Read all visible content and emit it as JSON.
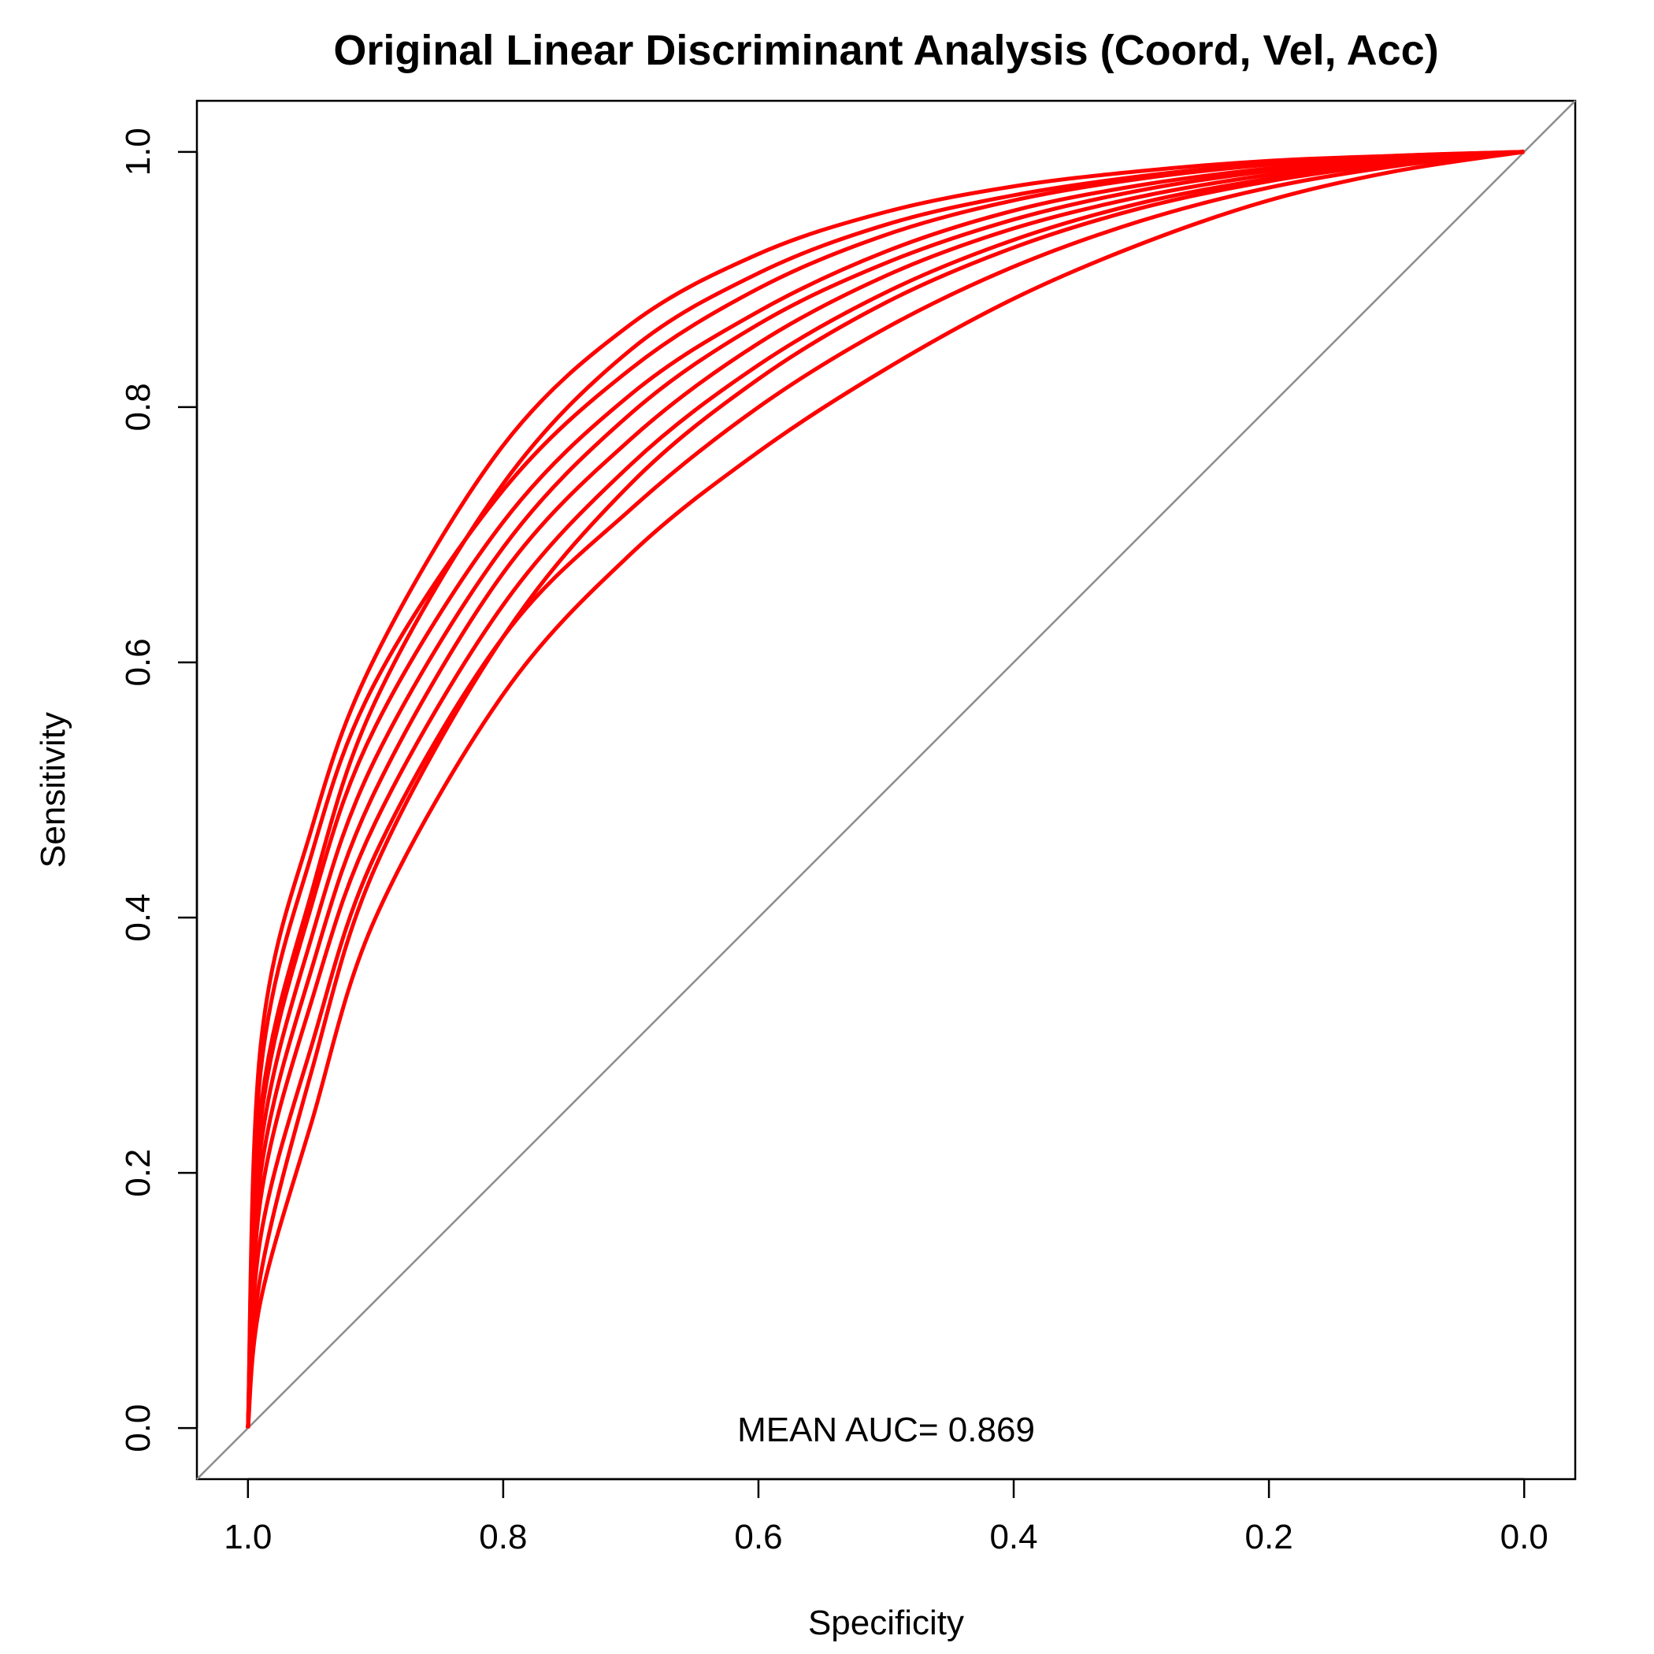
{
  "chart_data": {
    "type": "line",
    "title": "Original Linear Discriminant Analysis (Coord, Vel, Acc)",
    "xlabel": "Specificity",
    "ylabel": "Sensitivity",
    "x_reversed": true,
    "xlim": [
      1.04,
      -0.04
    ],
    "ylim": [
      -0.04,
      1.04
    ],
    "x_ticks": [
      "1.0",
      "0.8",
      "0.6",
      "0.4",
      "0.2",
      "0.0"
    ],
    "y_ticks": [
      "0.0",
      "0.2",
      "0.4",
      "0.6",
      "0.8",
      "1.0"
    ],
    "grid": false,
    "legend": "none",
    "reference_line": {
      "from": [
        1.0,
        0.0
      ],
      "to": [
        0.0,
        1.0
      ],
      "color": "#8c8c8c"
    },
    "series_color": "#ff0000",
    "annotation": "MEAN AUC= 0.869",
    "series": [
      {
        "values": [
          [
            1.0,
            0.0
          ],
          [
            0.99,
            0.3
          ],
          [
            0.95,
            0.47
          ],
          [
            0.9,
            0.605
          ],
          [
            0.8,
            0.77
          ],
          [
            0.7,
            0.865
          ],
          [
            0.6,
            0.92
          ],
          [
            0.5,
            0.953
          ],
          [
            0.4,
            0.973
          ],
          [
            0.3,
            0.985
          ],
          [
            0.2,
            0.993
          ],
          [
            0.1,
            0.997
          ],
          [
            0.0,
            1.0
          ]
        ]
      },
      {
        "values": [
          [
            1.0,
            0.0
          ],
          [
            0.99,
            0.25
          ],
          [
            0.95,
            0.42
          ],
          [
            0.9,
            0.57
          ],
          [
            0.8,
            0.74
          ],
          [
            0.7,
            0.845
          ],
          [
            0.6,
            0.905
          ],
          [
            0.5,
            0.943
          ],
          [
            0.4,
            0.966
          ],
          [
            0.3,
            0.981
          ],
          [
            0.2,
            0.991
          ],
          [
            0.1,
            0.997
          ],
          [
            0.0,
            1.0
          ]
        ]
      },
      {
        "values": [
          [
            1.0,
            0.0
          ],
          [
            0.99,
            0.28
          ],
          [
            0.95,
            0.45
          ],
          [
            0.9,
            0.585
          ],
          [
            0.8,
            0.735
          ],
          [
            0.7,
            0.83
          ],
          [
            0.6,
            0.893
          ],
          [
            0.5,
            0.935
          ],
          [
            0.4,
            0.962
          ],
          [
            0.3,
            0.979
          ],
          [
            0.2,
            0.99
          ],
          [
            0.1,
            0.996
          ],
          [
            0.0,
            1.0
          ]
        ]
      },
      {
        "values": [
          [
            1.0,
            0.0
          ],
          [
            0.99,
            0.24
          ],
          [
            0.95,
            0.41
          ],
          [
            0.9,
            0.55
          ],
          [
            0.8,
            0.71
          ],
          [
            0.7,
            0.81
          ],
          [
            0.6,
            0.875
          ],
          [
            0.5,
            0.922
          ],
          [
            0.4,
            0.954
          ],
          [
            0.3,
            0.974
          ],
          [
            0.2,
            0.987
          ],
          [
            0.1,
            0.995
          ],
          [
            0.0,
            1.0
          ]
        ]
      },
      {
        "values": [
          [
            1.0,
            0.0
          ],
          [
            0.99,
            0.22
          ],
          [
            0.95,
            0.385
          ],
          [
            0.9,
            0.525
          ],
          [
            0.8,
            0.69
          ],
          [
            0.7,
            0.795
          ],
          [
            0.6,
            0.865
          ],
          [
            0.5,
            0.913
          ],
          [
            0.4,
            0.947
          ],
          [
            0.3,
            0.97
          ],
          [
            0.2,
            0.985
          ],
          [
            0.1,
            0.994
          ],
          [
            0.0,
            1.0
          ]
        ]
      },
      {
        "values": [
          [
            1.0,
            0.0
          ],
          [
            0.99,
            0.2
          ],
          [
            0.95,
            0.36
          ],
          [
            0.9,
            0.5
          ],
          [
            0.8,
            0.67
          ],
          [
            0.7,
            0.775
          ],
          [
            0.6,
            0.85
          ],
          [
            0.5,
            0.903
          ],
          [
            0.4,
            0.94
          ],
          [
            0.3,
            0.965
          ],
          [
            0.2,
            0.982
          ],
          [
            0.1,
            0.993
          ],
          [
            0.0,
            1.0
          ]
        ]
      },
      {
        "values": [
          [
            1.0,
            0.0
          ],
          [
            0.99,
            0.18
          ],
          [
            0.95,
            0.335
          ],
          [
            0.9,
            0.475
          ],
          [
            0.8,
            0.645
          ],
          [
            0.7,
            0.755
          ],
          [
            0.6,
            0.833
          ],
          [
            0.5,
            0.89
          ],
          [
            0.4,
            0.931
          ],
          [
            0.3,
            0.96
          ],
          [
            0.2,
            0.979
          ],
          [
            0.1,
            0.992
          ],
          [
            0.0,
            1.0
          ]
        ]
      },
      {
        "values": [
          [
            1.0,
            0.0
          ],
          [
            0.99,
            0.12
          ],
          [
            0.95,
            0.28
          ],
          [
            0.9,
            0.44
          ],
          [
            0.8,
            0.62
          ],
          [
            0.7,
            0.74
          ],
          [
            0.6,
            0.822
          ],
          [
            0.5,
            0.882
          ],
          [
            0.4,
            0.925
          ],
          [
            0.3,
            0.956
          ],
          [
            0.2,
            0.977
          ],
          [
            0.1,
            0.991
          ],
          [
            0.0,
            1.0
          ]
        ]
      },
      {
        "values": [
          [
            1.0,
            0.0
          ],
          [
            0.99,
            0.15
          ],
          [
            0.95,
            0.3
          ],
          [
            0.9,
            0.45
          ],
          [
            0.8,
            0.62
          ],
          [
            0.7,
            0.72
          ],
          [
            0.6,
            0.8
          ],
          [
            0.5,
            0.862
          ],
          [
            0.4,
            0.91
          ],
          [
            0.3,
            0.946
          ],
          [
            0.2,
            0.972
          ],
          [
            0.1,
            0.989
          ],
          [
            0.0,
            1.0
          ]
        ]
      },
      {
        "values": [
          [
            1.0,
            0.0
          ],
          [
            0.99,
            0.1
          ],
          [
            0.95,
            0.24
          ],
          [
            0.9,
            0.4
          ],
          [
            0.8,
            0.575
          ],
          [
            0.7,
            0.685
          ],
          [
            0.6,
            0.765
          ],
          [
            0.5,
            0.83
          ],
          [
            0.4,
            0.885
          ],
          [
            0.3,
            0.928
          ],
          [
            0.2,
            0.962
          ],
          [
            0.1,
            0.985
          ],
          [
            0.0,
            1.0
          ]
        ]
      }
    ]
  }
}
